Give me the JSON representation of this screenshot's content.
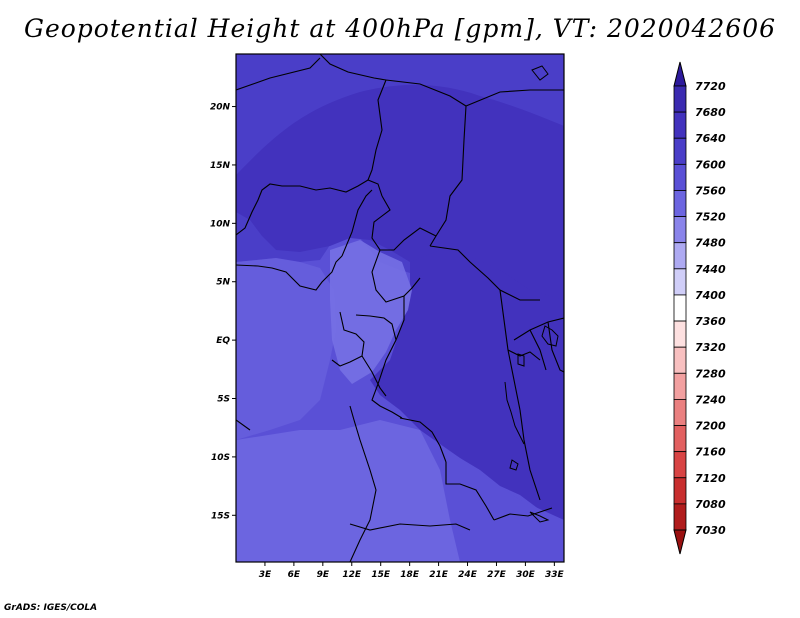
{
  "title": "Geopotential Height at 400hPa [gpm], VT: 2020042606",
  "credit": "GrADS: IGES/COLA",
  "map": {
    "variable": "Geopotential Height at 400hPa",
    "units": "gpm",
    "valid_time": "2020042606",
    "lat_range": [
      -19,
      24.5
    ],
    "lon_range": [
      0,
      34
    ],
    "lat_ticks": [
      {
        "value": 20,
        "label": "20N"
      },
      {
        "value": 15,
        "label": "15N"
      },
      {
        "value": 10,
        "label": "10N"
      },
      {
        "value": 5,
        "label": "5N"
      },
      {
        "value": 0,
        "label": "EQ"
      },
      {
        "value": -5,
        "label": "5S"
      },
      {
        "value": -10,
        "label": "10S"
      },
      {
        "value": -15,
        "label": "15S"
      }
    ],
    "lon_ticks": [
      {
        "value": 3,
        "label": "3E"
      },
      {
        "value": 6,
        "label": "6E"
      },
      {
        "value": 9,
        "label": "9E"
      },
      {
        "value": 12,
        "label": "12E"
      },
      {
        "value": 15,
        "label": "15E"
      },
      {
        "value": 18,
        "label": "18E"
      },
      {
        "value": 21,
        "label": "21E"
      },
      {
        "value": 24,
        "label": "24E"
      },
      {
        "value": 27,
        "label": "27E"
      },
      {
        "value": 30,
        "label": "30E"
      },
      {
        "value": 33,
        "label": "33E"
      }
    ]
  },
  "colorbar": {
    "levels": [
      "7720",
      "7680",
      "7640",
      "7600",
      "7560",
      "7520",
      "7480",
      "7440",
      "7400",
      "7360",
      "7320",
      "7280",
      "7240",
      "7200",
      "7160",
      "7120",
      "7080",
      "7030"
    ],
    "colors": [
      "#2d1a9c",
      "#3a2ab0",
      "#4232bd",
      "#4a3ec8",
      "#5a50d6",
      "#6c65e0",
      "#8a84ea",
      "#aeaaf2",
      "#d0ceF8",
      "#ffffff",
      "#fde0e0",
      "#f8c0c0",
      "#f2a0a0",
      "#ea8080",
      "#e26060",
      "#d84444",
      "#c82e2e",
      "#b01c1c",
      "#9a1010"
    ]
  },
  "field_colors": {
    "high": "#4232bd",
    "mid": "#4a3ec8",
    "low": "#5a50d6",
    "lower": "#6c65e0"
  }
}
